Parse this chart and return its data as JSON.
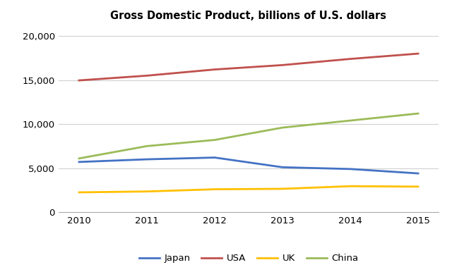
{
  "title": "Gross Domestic Product, billions of U.S. dollars",
  "years": [
    2010,
    2011,
    2012,
    2013,
    2014,
    2015
  ],
  "series": {
    "Japan": {
      "values": [
        5700,
        6000,
        6200,
        5100,
        4900,
        4400
      ],
      "color": "#4472C4"
    },
    "USA": {
      "values": [
        14960,
        15500,
        16200,
        16700,
        17400,
        18000
      ],
      "color": "#C0504D"
    },
    "UK": {
      "values": [
        2250,
        2350,
        2600,
        2650,
        2950,
        2900
      ],
      "color": "#FFC000"
    },
    "China": {
      "values": [
        6100,
        7500,
        8200,
        9600,
        10400,
        11200
      ],
      "color": "#9BBB59"
    }
  },
  "ylim": [
    0,
    21000
  ],
  "yticks": [
    0,
    5000,
    10000,
    15000,
    20000
  ],
  "legend_order": [
    "Japan",
    "USA",
    "UK",
    "China"
  ],
  "background_color": "#ffffff",
  "grid_color": "#d0d0d0",
  "title_fontsize": 10.5,
  "tick_fontsize": 9.5
}
